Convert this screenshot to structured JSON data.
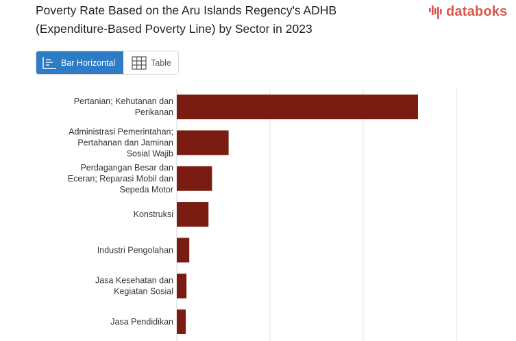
{
  "header": {
    "title_line1": "Poverty Rate Based on the Aru Islands Regency's ADHB",
    "title_line2": "(Expenditure-Based Poverty Line) by Sector in 2023",
    "logo_text": "databoks"
  },
  "view_toggle": {
    "bar_label": "Bar Horizontal",
    "table_label": "Table"
  },
  "colors": {
    "bar": "#7a1c12",
    "active_button": "#2e7cc4",
    "logo": "#d9574b"
  },
  "chart_data": {
    "type": "bar",
    "orientation": "horizontal",
    "title": "Poverty Rate Based on the Aru Islands Regency's ADHB (Expenditure-Based Poverty Line) by Sector in 2023",
    "categories": [
      [
        "Pertanian; Kehutanan dan",
        "Perikanan"
      ],
      [
        "Administrasi Pemerintahan;",
        "Pertahanan dan Jaminan",
        "Sosial Wajib"
      ],
      [
        "Perdagangan Besar dan",
        "Eceran; Reparasi Mobil dan",
        "Sepeda Motor"
      ],
      [
        "Konstruksi"
      ],
      [
        "Industri Pengolahan"
      ],
      [
        "Jasa Kesehatan dan",
        "Kegiatan Sosial"
      ],
      [
        "Jasa Pendidikan"
      ]
    ],
    "values": [
      1294,
      278,
      189,
      170,
      67,
      52,
      48
    ],
    "xlim": [
      0,
      1500
    ],
    "grid_values": [
      0,
      500,
      1000,
      1500
    ],
    "grid": true
  }
}
